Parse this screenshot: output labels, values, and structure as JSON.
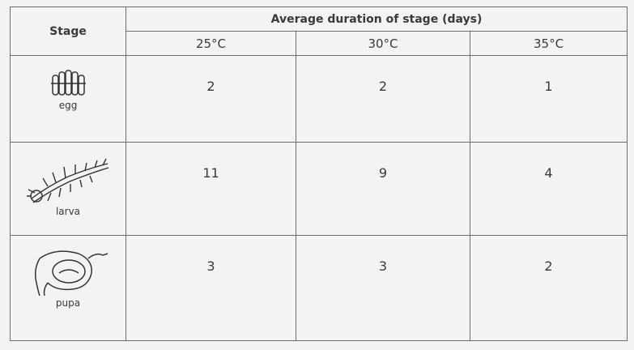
{
  "table": {
    "header": {
      "stage": "Stage",
      "group": "Average duration of stage (days)",
      "temperatures": [
        "25°C",
        "30°C",
        "35°C"
      ]
    },
    "rows": [
      {
        "stage": "egg",
        "values": [
          2,
          2,
          1
        ]
      },
      {
        "stage": "larva",
        "values": [
          11,
          9,
          4
        ]
      },
      {
        "stage": "pupa",
        "values": [
          3,
          3,
          2
        ]
      }
    ]
  }
}
